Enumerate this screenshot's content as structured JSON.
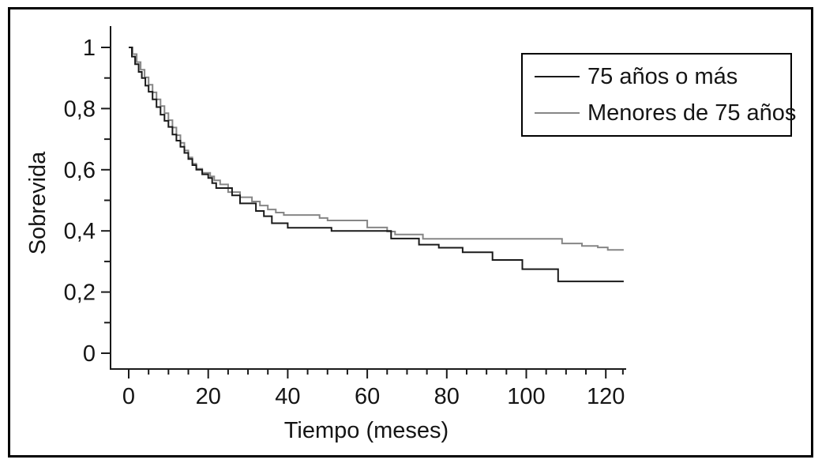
{
  "figure": {
    "background": "#ffffff",
    "frame_color": "#000000",
    "axis_color": "#1a1a1a",
    "text_color": "#151515"
  },
  "chart_data": {
    "type": "line",
    "subtype": "kaplan-meier-step-survival",
    "title": "",
    "xlabel": "Tiempo (meses)",
    "ylabel": "Sobrevida",
    "xlim": [
      0,
      125
    ],
    "ylim": [
      0,
      1
    ],
    "grid": false,
    "legend_position": "top-right",
    "x_major_ticks": [
      0,
      20,
      40,
      60,
      80,
      100,
      120
    ],
    "x_major_tick_labels": [
      "0",
      "20",
      "40",
      "60",
      "80",
      "100",
      "120"
    ],
    "x_minor_ticks": [
      5,
      10,
      15,
      25,
      30,
      35,
      45,
      50,
      55,
      65,
      70,
      75,
      85,
      90,
      95,
      105,
      110,
      115,
      124.3
    ],
    "y_major_ticks": [
      1,
      0.8,
      0.6,
      0.4,
      0.2,
      0
    ],
    "y_major_tick_labels": [
      "1",
      "0,8",
      "0,6",
      "0,4",
      "0,2",
      "0"
    ],
    "y_minor_ticks": [
      0.9,
      0.7,
      0.5,
      0.3,
      0.1
    ],
    "series": [
      {
        "name": "75 años o más",
        "color": "#1a1a1a",
        "end_time": 124.5,
        "points": [
          [
            0,
            1.0
          ],
          [
            0.8,
            0.97
          ],
          [
            1.6,
            0.945
          ],
          [
            2.5,
            0.92
          ],
          [
            3.3,
            0.9
          ],
          [
            4.2,
            0.875
          ],
          [
            5,
            0.855
          ],
          [
            6,
            0.83
          ],
          [
            7,
            0.805
          ],
          [
            8,
            0.78
          ],
          [
            9,
            0.76
          ],
          [
            10,
            0.74
          ],
          [
            11,
            0.715
          ],
          [
            12,
            0.695
          ],
          [
            13,
            0.675
          ],
          [
            14,
            0.655
          ],
          [
            15,
            0.635
          ],
          [
            16,
            0.615
          ],
          [
            17,
            0.6
          ],
          [
            18.5,
            0.585
          ],
          [
            20,
            0.573
          ],
          [
            21,
            0.556
          ],
          [
            22,
            0.54
          ],
          [
            26,
            0.516
          ],
          [
            28,
            0.49
          ],
          [
            32,
            0.465
          ],
          [
            34,
            0.448
          ],
          [
            36,
            0.425
          ],
          [
            40,
            0.41
          ],
          [
            51,
            0.4
          ],
          [
            66,
            0.375
          ],
          [
            73,
            0.355
          ],
          [
            78,
            0.345
          ],
          [
            84,
            0.33
          ],
          [
            91.5,
            0.305
          ],
          [
            99,
            0.275
          ],
          [
            108,
            0.235
          ]
        ]
      },
      {
        "name": "Menores de 75 años",
        "color": "#868686",
        "end_time": 124.5,
        "points": [
          [
            0,
            1.0
          ],
          [
            1,
            0.978
          ],
          [
            2,
            0.952
          ],
          [
            3,
            0.927
          ],
          [
            4,
            0.902
          ],
          [
            5,
            0.878
          ],
          [
            6,
            0.853
          ],
          [
            7,
            0.83
          ],
          [
            8,
            0.808
          ],
          [
            9,
            0.785
          ],
          [
            10,
            0.762
          ],
          [
            11,
            0.738
          ],
          [
            12,
            0.713
          ],
          [
            13,
            0.688
          ],
          [
            14,
            0.663
          ],
          [
            15,
            0.64
          ],
          [
            16,
            0.62
          ],
          [
            17,
            0.603
          ],
          [
            18.5,
            0.59
          ],
          [
            20.5,
            0.578
          ],
          [
            21.5,
            0.565
          ],
          [
            23,
            0.552
          ],
          [
            25,
            0.527
          ],
          [
            28,
            0.51
          ],
          [
            31,
            0.496
          ],
          [
            33,
            0.483
          ],
          [
            35,
            0.47
          ],
          [
            37,
            0.46
          ],
          [
            39,
            0.452
          ],
          [
            48,
            0.442
          ],
          [
            50,
            0.434
          ],
          [
            60,
            0.411
          ],
          [
            65,
            0.398
          ],
          [
            67,
            0.388
          ],
          [
            74,
            0.374
          ],
          [
            109,
            0.359
          ],
          [
            114,
            0.351
          ],
          [
            118,
            0.346
          ],
          [
            120.5,
            0.338
          ]
        ]
      }
    ]
  }
}
